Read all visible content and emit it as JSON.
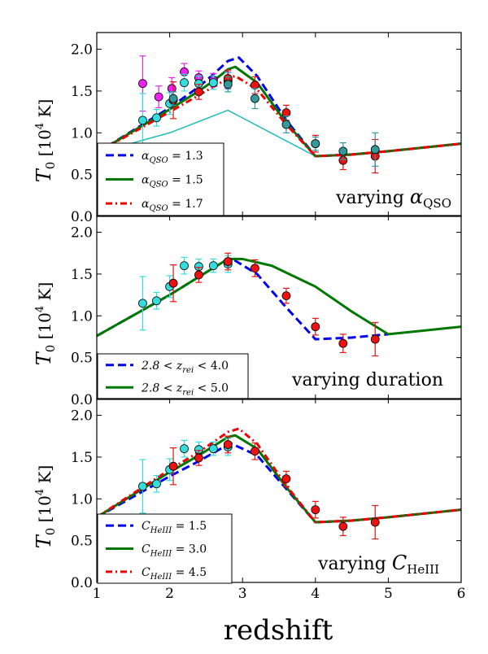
{
  "figure": {
    "xlabel": "redshift",
    "panel_ylabel_main": "T",
    "panel_ylabel_sub": "0",
    "panel_ylabel_units_pre": "[10",
    "panel_ylabel_units_exp": "4",
    "panel_ylabel_units_post": " K]"
  },
  "chart_data": [
    {
      "type": "line",
      "title": "",
      "annotation": {
        "prefix": "varying ",
        "math": "α",
        "sub": "QSO"
      },
      "xlim": [
        1,
        6
      ],
      "ylim": [
        0.0,
        2.2
      ],
      "x_ticks": [
        "1",
        "2",
        "3",
        "4",
        "5",
        "6"
      ],
      "y_ticks": [
        "0.0",
        "0.5",
        "1.0",
        "1.5",
        "2.0"
      ],
      "grid": false,
      "legend_position": "lower-left",
      "series": [
        {
          "name_main": "α",
          "name_sub": "QSO",
          "name_tail": " = 1.3",
          "color": "#0000ee",
          "dash": "10,5",
          "width": 3,
          "x": [
            1.0,
            2.0,
            2.4,
            2.6,
            2.8,
            2.95,
            3.2,
            3.6,
            4.0,
            4.5,
            5.0,
            6.0
          ],
          "y": [
            0.76,
            1.3,
            1.55,
            1.7,
            1.86,
            1.9,
            1.68,
            1.15,
            0.72,
            0.74,
            0.78,
            0.87
          ]
        },
        {
          "name_main": "α",
          "name_sub": "QSO",
          "name_tail": " = 1.5",
          "color": "#007700",
          "dash": "",
          "width": 3,
          "x": [
            1.0,
            2.0,
            2.4,
            2.6,
            2.8,
            2.9,
            3.2,
            3.6,
            4.0,
            4.5,
            5.0,
            6.0
          ],
          "y": [
            0.76,
            1.28,
            1.5,
            1.62,
            1.76,
            1.79,
            1.6,
            1.12,
            0.72,
            0.74,
            0.78,
            0.87
          ]
        },
        {
          "name_main": "α",
          "name_sub": "QSO",
          "name_tail": " = 1.7",
          "color": "#ee0000",
          "dash": "8,4,2,4",
          "width": 3,
          "x": [
            1.0,
            2.0,
            2.4,
            2.6,
            2.8,
            2.9,
            3.2,
            3.6,
            4.0,
            4.5,
            5.0,
            6.0
          ],
          "y": [
            0.76,
            1.25,
            1.45,
            1.55,
            1.65,
            1.68,
            1.52,
            1.1,
            0.72,
            0.74,
            0.78,
            0.87
          ]
        }
      ],
      "extra_lines": [
        {
          "color": "#22bbbb",
          "width": 1.5,
          "x": [
            1.0,
            2.0,
            2.8,
            4.0,
            5.0,
            6.0
          ],
          "y": [
            0.76,
            1.0,
            1.27,
            0.72,
            0.78,
            0.87
          ]
        }
      ],
      "points": [
        {
          "color": "#ee22ee",
          "x": [
            1.63,
            1.85,
            2.03,
            2.2,
            2.4,
            2.6,
            2.8
          ],
          "y": [
            1.59,
            1.43,
            1.53,
            1.73,
            1.66,
            1.63,
            1.63
          ],
          "err": [
            0.33,
            0.13,
            0.13,
            0.1,
            0.08,
            0.08,
            0.1
          ]
        },
        {
          "color": "#33dddd",
          "x": [
            1.63,
            1.82,
            2.0,
            2.2,
            2.4,
            2.6,
            2.8
          ],
          "y": [
            1.15,
            1.18,
            1.35,
            1.6,
            1.59,
            1.6,
            1.62
          ],
          "err": [
            0.32,
            0.1,
            0.13,
            0.1,
            0.09,
            0.08,
            0.1
          ]
        },
        {
          "color": "#ee1111",
          "x": [
            2.05,
            2.4,
            2.8,
            3.17,
            3.6,
            4.0,
            4.38,
            4.82
          ],
          "y": [
            1.39,
            1.49,
            1.65,
            1.57,
            1.24,
            0.87,
            0.67,
            0.72
          ],
          "err": [
            0.22,
            0.09,
            0.1,
            0.1,
            0.09,
            0.1,
            0.11,
            0.2
          ]
        },
        {
          "color": "#339999",
          "x": [
            2.05,
            2.8,
            3.17,
            3.6,
            4.0,
            4.38,
            4.82
          ],
          "y": [
            1.41,
            1.58,
            1.41,
            1.1,
            0.87,
            0.78,
            0.8
          ],
          "err": [
            0.08,
            0.09,
            0.12,
            0.1,
            0.08,
            0.1,
            0.2
          ]
        }
      ]
    },
    {
      "type": "line",
      "title": "",
      "annotation": {
        "prefix": "varying duration",
        "math": "",
        "sub": ""
      },
      "xlim": [
        1,
        6
      ],
      "ylim": [
        0.0,
        2.2
      ],
      "x_ticks": [
        "1",
        "2",
        "3",
        "4",
        "5",
        "6"
      ],
      "y_ticks": [
        "0.0",
        "0.5",
        "1.0",
        "1.5",
        "2.0"
      ],
      "grid": false,
      "legend_position": "lower-left",
      "series": [
        {
          "name_main": "2.8 < z",
          "name_sub": "rei",
          "name_tail": " < 4.0",
          "color": "#0000ee",
          "dash": "10,5",
          "width": 3,
          "x": [
            1.0,
            2.0,
            2.5,
            2.8,
            2.9,
            3.2,
            3.6,
            4.0,
            4.5,
            5.0
          ],
          "y": [
            0.76,
            1.25,
            1.52,
            1.68,
            1.66,
            1.5,
            1.1,
            0.72,
            0.74,
            0.78
          ]
        },
        {
          "name_main": "2.8 < z",
          "name_sub": "rei",
          "name_tail": " < 5.0",
          "color": "#007700",
          "dash": "",
          "width": 3,
          "x": [
            1.0,
            2.0,
            2.5,
            2.8,
            3.0,
            3.4,
            4.0,
            4.5,
            5.0,
            6.0
          ],
          "y": [
            0.76,
            1.25,
            1.52,
            1.68,
            1.68,
            1.6,
            1.35,
            1.05,
            0.78,
            0.87
          ]
        }
      ],
      "extra_lines": [],
      "points": [
        {
          "color": "#33dddd",
          "x": [
            1.63,
            1.82,
            2.0,
            2.2,
            2.4,
            2.6,
            2.8
          ],
          "y": [
            1.15,
            1.18,
            1.35,
            1.6,
            1.59,
            1.6,
            1.62
          ],
          "err": [
            0.32,
            0.1,
            0.13,
            0.1,
            0.09,
            0.08,
            0.1
          ]
        },
        {
          "color": "#ee1111",
          "x": [
            2.05,
            2.4,
            2.8,
            3.17,
            3.6,
            4.0,
            4.38,
            4.82
          ],
          "y": [
            1.39,
            1.49,
            1.65,
            1.57,
            1.24,
            0.87,
            0.67,
            0.72
          ],
          "err": [
            0.22,
            0.09,
            0.1,
            0.1,
            0.09,
            0.1,
            0.11,
            0.2
          ]
        }
      ]
    },
    {
      "type": "line",
      "title": "",
      "annotation": {
        "prefix": "varying ",
        "math": "C",
        "sub": "HeIII"
      },
      "xlim": [
        1,
        6
      ],
      "ylim": [
        0.0,
        2.2
      ],
      "x_ticks": [
        "1",
        "2",
        "3",
        "4",
        "5",
        "6"
      ],
      "y_ticks": [
        "0.0",
        "0.5",
        "1.0",
        "1.5",
        "2.0"
      ],
      "grid": false,
      "legend_position": "lower-left",
      "series": [
        {
          "name_main": "C",
          "name_sub": "HeIII",
          "name_tail": " = 1.5",
          "color": "#0000ee",
          "dash": "10,5",
          "width": 3,
          "x": [
            1.0,
            2.0,
            2.4,
            2.6,
            2.8,
            2.85,
            3.2,
            3.6,
            4.0,
            4.5,
            5.0,
            6.0
          ],
          "y": [
            0.78,
            1.27,
            1.45,
            1.55,
            1.65,
            1.66,
            1.52,
            1.12,
            0.72,
            0.74,
            0.78,
            0.87
          ]
        },
        {
          "name_main": "C",
          "name_sub": "HeIII",
          "name_tail": " = 3.0",
          "color": "#007700",
          "dash": "",
          "width": 3,
          "x": [
            1.0,
            2.0,
            2.4,
            2.6,
            2.8,
            2.9,
            3.2,
            3.6,
            4.0,
            4.5,
            5.0,
            6.0
          ],
          "y": [
            0.78,
            1.32,
            1.52,
            1.63,
            1.74,
            1.76,
            1.6,
            1.14,
            0.72,
            0.74,
            0.78,
            0.87
          ]
        },
        {
          "name_main": "C",
          "name_sub": "HeIII",
          "name_tail": " = 4.5",
          "color": "#ee0000",
          "dash": "8,4,2,4",
          "width": 3,
          "x": [
            1.0,
            2.0,
            2.4,
            2.6,
            2.8,
            2.95,
            3.2,
            3.6,
            4.0,
            4.5,
            5.0,
            6.0
          ],
          "y": [
            0.78,
            1.35,
            1.56,
            1.68,
            1.8,
            1.84,
            1.66,
            1.16,
            0.72,
            0.74,
            0.78,
            0.87
          ]
        }
      ],
      "extra_lines": [],
      "points": [
        {
          "color": "#33dddd",
          "x": [
            1.63,
            1.82,
            2.0,
            2.2,
            2.4,
            2.6,
            2.8
          ],
          "y": [
            1.15,
            1.18,
            1.35,
            1.6,
            1.59,
            1.6,
            1.62
          ],
          "err": [
            0.32,
            0.1,
            0.13,
            0.1,
            0.09,
            0.08,
            0.1
          ]
        },
        {
          "color": "#ee1111",
          "x": [
            2.05,
            2.4,
            2.8,
            3.17,
            3.6,
            4.0,
            4.38,
            4.82
          ],
          "y": [
            1.39,
            1.49,
            1.65,
            1.57,
            1.24,
            0.87,
            0.67,
            0.72
          ],
          "err": [
            0.22,
            0.09,
            0.1,
            0.1,
            0.09,
            0.1,
            0.11,
            0.2
          ]
        }
      ]
    }
  ]
}
